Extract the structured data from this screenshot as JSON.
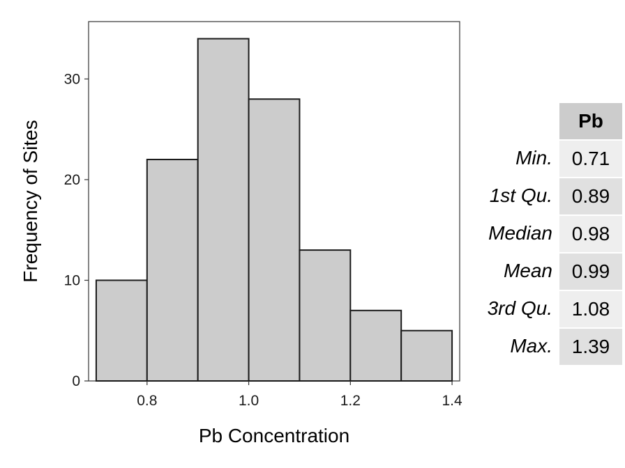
{
  "chart_data": {
    "type": "bar",
    "subtype": "histogram",
    "bins": [
      {
        "start": 0.7,
        "end": 0.8,
        "count": 10
      },
      {
        "start": 0.8,
        "end": 0.9,
        "count": 22
      },
      {
        "start": 0.9,
        "end": 1.0,
        "count": 34
      },
      {
        "start": 1.0,
        "end": 1.1,
        "count": 28
      },
      {
        "start": 1.1,
        "end": 1.2,
        "count": 13
      },
      {
        "start": 1.2,
        "end": 1.3,
        "count": 7
      },
      {
        "start": 1.3,
        "end": 1.4,
        "count": 5
      }
    ],
    "xlabel": "Pb Concentration",
    "ylabel": "Frequency of Sites",
    "xlim": [
      0.685,
      1.415
    ],
    "ylim": [
      0,
      35.7
    ],
    "xticks": [
      {
        "value": 0.8,
        "label": "0.8"
      },
      {
        "value": 1.0,
        "label": "1.0"
      },
      {
        "value": 1.2,
        "label": "1.2"
      },
      {
        "value": 1.4,
        "label": "1.4"
      }
    ],
    "yticks": [
      {
        "value": 0,
        "label": "0"
      },
      {
        "value": 10,
        "label": "10"
      },
      {
        "value": 20,
        "label": "20"
      },
      {
        "value": 30,
        "label": "30"
      }
    ],
    "bar_fill": "#cccccc",
    "bar_stroke": "#1a1a1a",
    "grid": false
  },
  "summary_table": {
    "header": "Pb",
    "rows": [
      {
        "label": "Min.",
        "value": "0.71"
      },
      {
        "label": "1st Qu.",
        "value": "0.89"
      },
      {
        "label": "Median",
        "value": "0.98"
      },
      {
        "label": "Mean",
        "value": "0.99"
      },
      {
        "label": "3rd Qu.",
        "value": "1.08"
      },
      {
        "label": "Max.",
        "value": "1.39"
      }
    ]
  }
}
